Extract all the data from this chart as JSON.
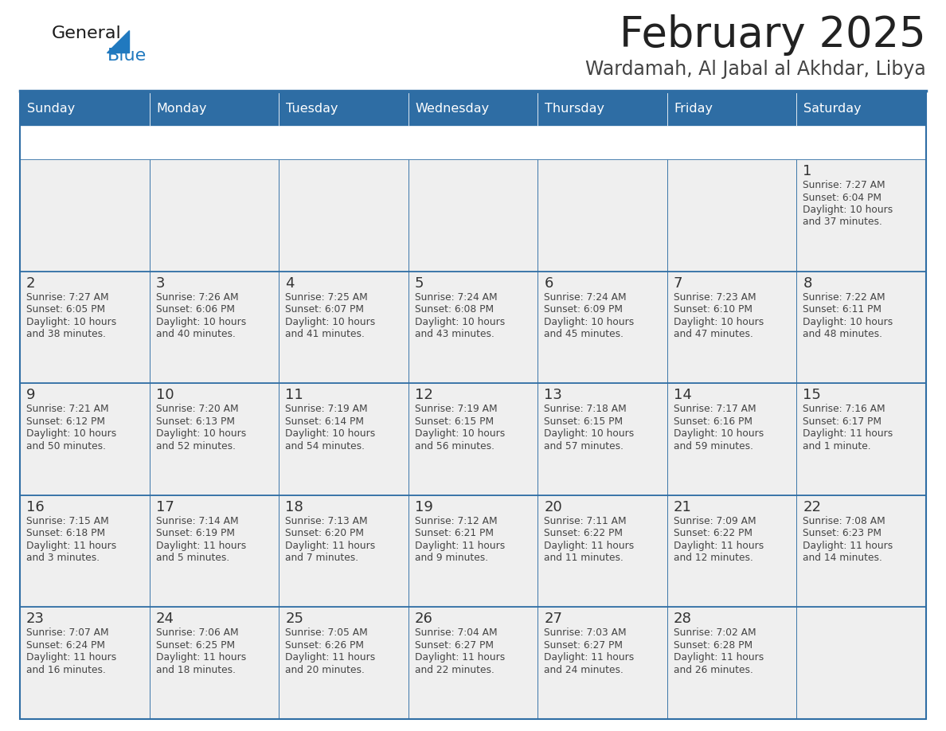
{
  "title": "February 2025",
  "subtitle": "Wardamah, Al Jabal al Akhdar, Libya",
  "days_of_week": [
    "Sunday",
    "Monday",
    "Tuesday",
    "Wednesday",
    "Thursday",
    "Friday",
    "Saturday"
  ],
  "header_bg": "#2E6DA4",
  "header_text": "#FFFFFF",
  "cell_bg_light": "#EFEFEF",
  "cell_bg_white": "#FFFFFF",
  "border_color": "#2E6DA4",
  "day_num_color": "#333333",
  "info_color": "#444444",
  "title_color": "#222222",
  "subtitle_color": "#444444",
  "logo_general_color": "#1a1a1a",
  "logo_blue_color": "#2079BF",
  "calendar_data": [
    [
      null,
      null,
      null,
      null,
      null,
      null,
      {
        "day": 1,
        "sunrise": "7:27 AM",
        "sunset": "6:04 PM",
        "daylight_line1": "10 hours",
        "daylight_line2": "and 37 minutes."
      }
    ],
    [
      {
        "day": 2,
        "sunrise": "7:27 AM",
        "sunset": "6:05 PM",
        "daylight_line1": "10 hours",
        "daylight_line2": "and 38 minutes."
      },
      {
        "day": 3,
        "sunrise": "7:26 AM",
        "sunset": "6:06 PM",
        "daylight_line1": "10 hours",
        "daylight_line2": "and 40 minutes."
      },
      {
        "day": 4,
        "sunrise": "7:25 AM",
        "sunset": "6:07 PM",
        "daylight_line1": "10 hours",
        "daylight_line2": "and 41 minutes."
      },
      {
        "day": 5,
        "sunrise": "7:24 AM",
        "sunset": "6:08 PM",
        "daylight_line1": "10 hours",
        "daylight_line2": "and 43 minutes."
      },
      {
        "day": 6,
        "sunrise": "7:24 AM",
        "sunset": "6:09 PM",
        "daylight_line1": "10 hours",
        "daylight_line2": "and 45 minutes."
      },
      {
        "day": 7,
        "sunrise": "7:23 AM",
        "sunset": "6:10 PM",
        "daylight_line1": "10 hours",
        "daylight_line2": "and 47 minutes."
      },
      {
        "day": 8,
        "sunrise": "7:22 AM",
        "sunset": "6:11 PM",
        "daylight_line1": "10 hours",
        "daylight_line2": "and 48 minutes."
      }
    ],
    [
      {
        "day": 9,
        "sunrise": "7:21 AM",
        "sunset": "6:12 PM",
        "daylight_line1": "10 hours",
        "daylight_line2": "and 50 minutes."
      },
      {
        "day": 10,
        "sunrise": "7:20 AM",
        "sunset": "6:13 PM",
        "daylight_line1": "10 hours",
        "daylight_line2": "and 52 minutes."
      },
      {
        "day": 11,
        "sunrise": "7:19 AM",
        "sunset": "6:14 PM",
        "daylight_line1": "10 hours",
        "daylight_line2": "and 54 minutes."
      },
      {
        "day": 12,
        "sunrise": "7:19 AM",
        "sunset": "6:15 PM",
        "daylight_line1": "10 hours",
        "daylight_line2": "and 56 minutes."
      },
      {
        "day": 13,
        "sunrise": "7:18 AM",
        "sunset": "6:15 PM",
        "daylight_line1": "10 hours",
        "daylight_line2": "and 57 minutes."
      },
      {
        "day": 14,
        "sunrise": "7:17 AM",
        "sunset": "6:16 PM",
        "daylight_line1": "10 hours",
        "daylight_line2": "and 59 minutes."
      },
      {
        "day": 15,
        "sunrise": "7:16 AM",
        "sunset": "6:17 PM",
        "daylight_line1": "11 hours",
        "daylight_line2": "and 1 minute."
      }
    ],
    [
      {
        "day": 16,
        "sunrise": "7:15 AM",
        "sunset": "6:18 PM",
        "daylight_line1": "11 hours",
        "daylight_line2": "and 3 minutes."
      },
      {
        "day": 17,
        "sunrise": "7:14 AM",
        "sunset": "6:19 PM",
        "daylight_line1": "11 hours",
        "daylight_line2": "and 5 minutes."
      },
      {
        "day": 18,
        "sunrise": "7:13 AM",
        "sunset": "6:20 PM",
        "daylight_line1": "11 hours",
        "daylight_line2": "and 7 minutes."
      },
      {
        "day": 19,
        "sunrise": "7:12 AM",
        "sunset": "6:21 PM",
        "daylight_line1": "11 hours",
        "daylight_line2": "and 9 minutes."
      },
      {
        "day": 20,
        "sunrise": "7:11 AM",
        "sunset": "6:22 PM",
        "daylight_line1": "11 hours",
        "daylight_line2": "and 11 minutes."
      },
      {
        "day": 21,
        "sunrise": "7:09 AM",
        "sunset": "6:22 PM",
        "daylight_line1": "11 hours",
        "daylight_line2": "and 12 minutes."
      },
      {
        "day": 22,
        "sunrise": "7:08 AM",
        "sunset": "6:23 PM",
        "daylight_line1": "11 hours",
        "daylight_line2": "and 14 minutes."
      }
    ],
    [
      {
        "day": 23,
        "sunrise": "7:07 AM",
        "sunset": "6:24 PM",
        "daylight_line1": "11 hours",
        "daylight_line2": "and 16 minutes."
      },
      {
        "day": 24,
        "sunrise": "7:06 AM",
        "sunset": "6:25 PM",
        "daylight_line1": "11 hours",
        "daylight_line2": "and 18 minutes."
      },
      {
        "day": 25,
        "sunrise": "7:05 AM",
        "sunset": "6:26 PM",
        "daylight_line1": "11 hours",
        "daylight_line2": "and 20 minutes."
      },
      {
        "day": 26,
        "sunrise": "7:04 AM",
        "sunset": "6:27 PM",
        "daylight_line1": "11 hours",
        "daylight_line2": "and 22 minutes."
      },
      {
        "day": 27,
        "sunrise": "7:03 AM",
        "sunset": "6:27 PM",
        "daylight_line1": "11 hours",
        "daylight_line2": "and 24 minutes."
      },
      {
        "day": 28,
        "sunrise": "7:02 AM",
        "sunset": "6:28 PM",
        "daylight_line1": "11 hours",
        "daylight_line2": "and 26 minutes."
      },
      null
    ]
  ]
}
